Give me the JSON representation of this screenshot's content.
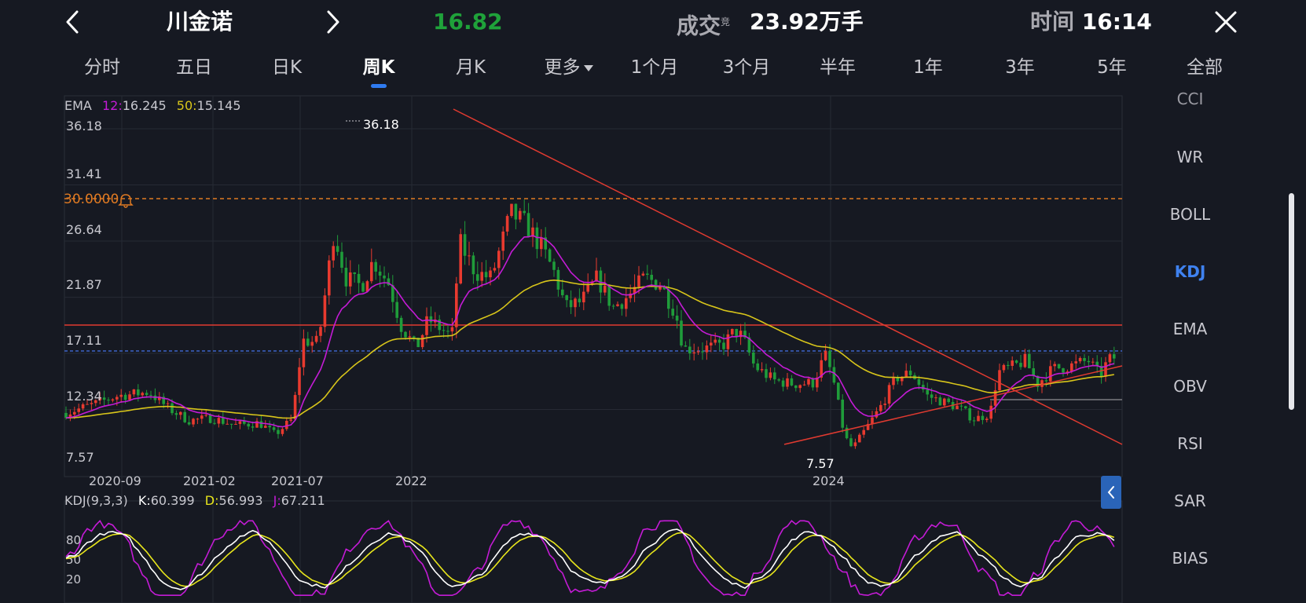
{
  "header": {
    "title": "川金诺",
    "price": "16.82",
    "volume_label": "成交",
    "volume_sup": "竞",
    "volume_value": "23.92万手",
    "time_label": "时间",
    "time_value": "16:14",
    "price_color": "#1fa23a"
  },
  "tabs": [
    {
      "label": "分时",
      "active": false
    },
    {
      "label": "五日",
      "active": false
    },
    {
      "label": "日K",
      "active": false
    },
    {
      "label": "周K",
      "active": true
    },
    {
      "label": "月K",
      "active": false
    },
    {
      "label": "更多",
      "active": false
    },
    {
      "label": "1个月",
      "active": false
    },
    {
      "label": "3个月",
      "active": false
    },
    {
      "label": "半年",
      "active": false
    },
    {
      "label": "1年",
      "active": false
    },
    {
      "label": "3年",
      "active": false
    },
    {
      "label": "5年",
      "active": false
    },
    {
      "label": "全部",
      "active": false
    }
  ],
  "indicators": [
    "CCI",
    "WR",
    "BOLL",
    "KDJ",
    "EMA",
    "OBV",
    "RSI",
    "SAR",
    "BIAS"
  ],
  "indicator_active": "KDJ",
  "ema_legend": {
    "name": "EMA",
    "p1": "12",
    "v1": "16.245",
    "p2": "50",
    "v2": "15.145"
  },
  "kdj_legend": {
    "name": "KDJ(9,3,3)",
    "k_label": "K",
    "k": "60.399",
    "d_label": "D",
    "d": "56.993",
    "j_label": "J",
    "j": "67.211"
  },
  "alert_label": "30.0000",
  "max_label": "36.18",
  "min_label": "7.57",
  "colors": {
    "up": "#e83a2f",
    "down": "#1f9c3a",
    "ema12": "#c41bd6",
    "ema50": "#d8c51a",
    "k": "#ffffff",
    "d": "#e8e61c",
    "j": "#c41bd6",
    "alert": "#e07a22",
    "accent": "#2f7bf0"
  },
  "chart_data": {
    "type": "candlestick",
    "period": "weekly",
    "y_ticks": [
      "36.18",
      "31.41",
      "26.64",
      "21.87",
      "17.11",
      "12.34",
      "7.57"
    ],
    "ylim": [
      7.57,
      36.18
    ],
    "x_labels": [
      "2020-09",
      "2021-02",
      "2021-07",
      "2022",
      "2024"
    ],
    "ema12_close_approx": [
      10.0,
      11.5,
      11.8,
      10.8,
      11.0,
      10.6,
      10.1,
      15.0,
      21.0,
      22.0,
      19.5,
      18.5,
      28.0,
      25.5,
      23.5,
      23.5,
      22.5,
      16.8,
      15.0,
      14.8,
      11.0,
      12.5,
      14.5,
      13.2,
      12.3,
      15.0,
      16.2,
      15.6,
      16.245
    ],
    "ema50_close_approx": [
      10.8,
      11.2,
      11.5,
      11.3,
      10.8,
      10.5,
      11.0,
      14.5,
      17.5,
      18.5,
      19.5,
      22.5,
      23.5,
      23.2,
      22.0,
      19.5,
      18.0,
      16.2,
      14.5,
      14.2,
      14.0,
      14.8,
      14.6,
      14.6,
      15.145
    ],
    "kdj_ticks": [
      "80",
      "50",
      "20"
    ],
    "kdj_ylim": [
      0,
      100
    ],
    "kdj_latest": {
      "K": 60.399,
      "D": 56.993,
      "J": 67.211
    },
    "horizontal_lines": {
      "alert": 30.0,
      "resistance": 19.0,
      "current": 16.82
    },
    "grid": true
  }
}
